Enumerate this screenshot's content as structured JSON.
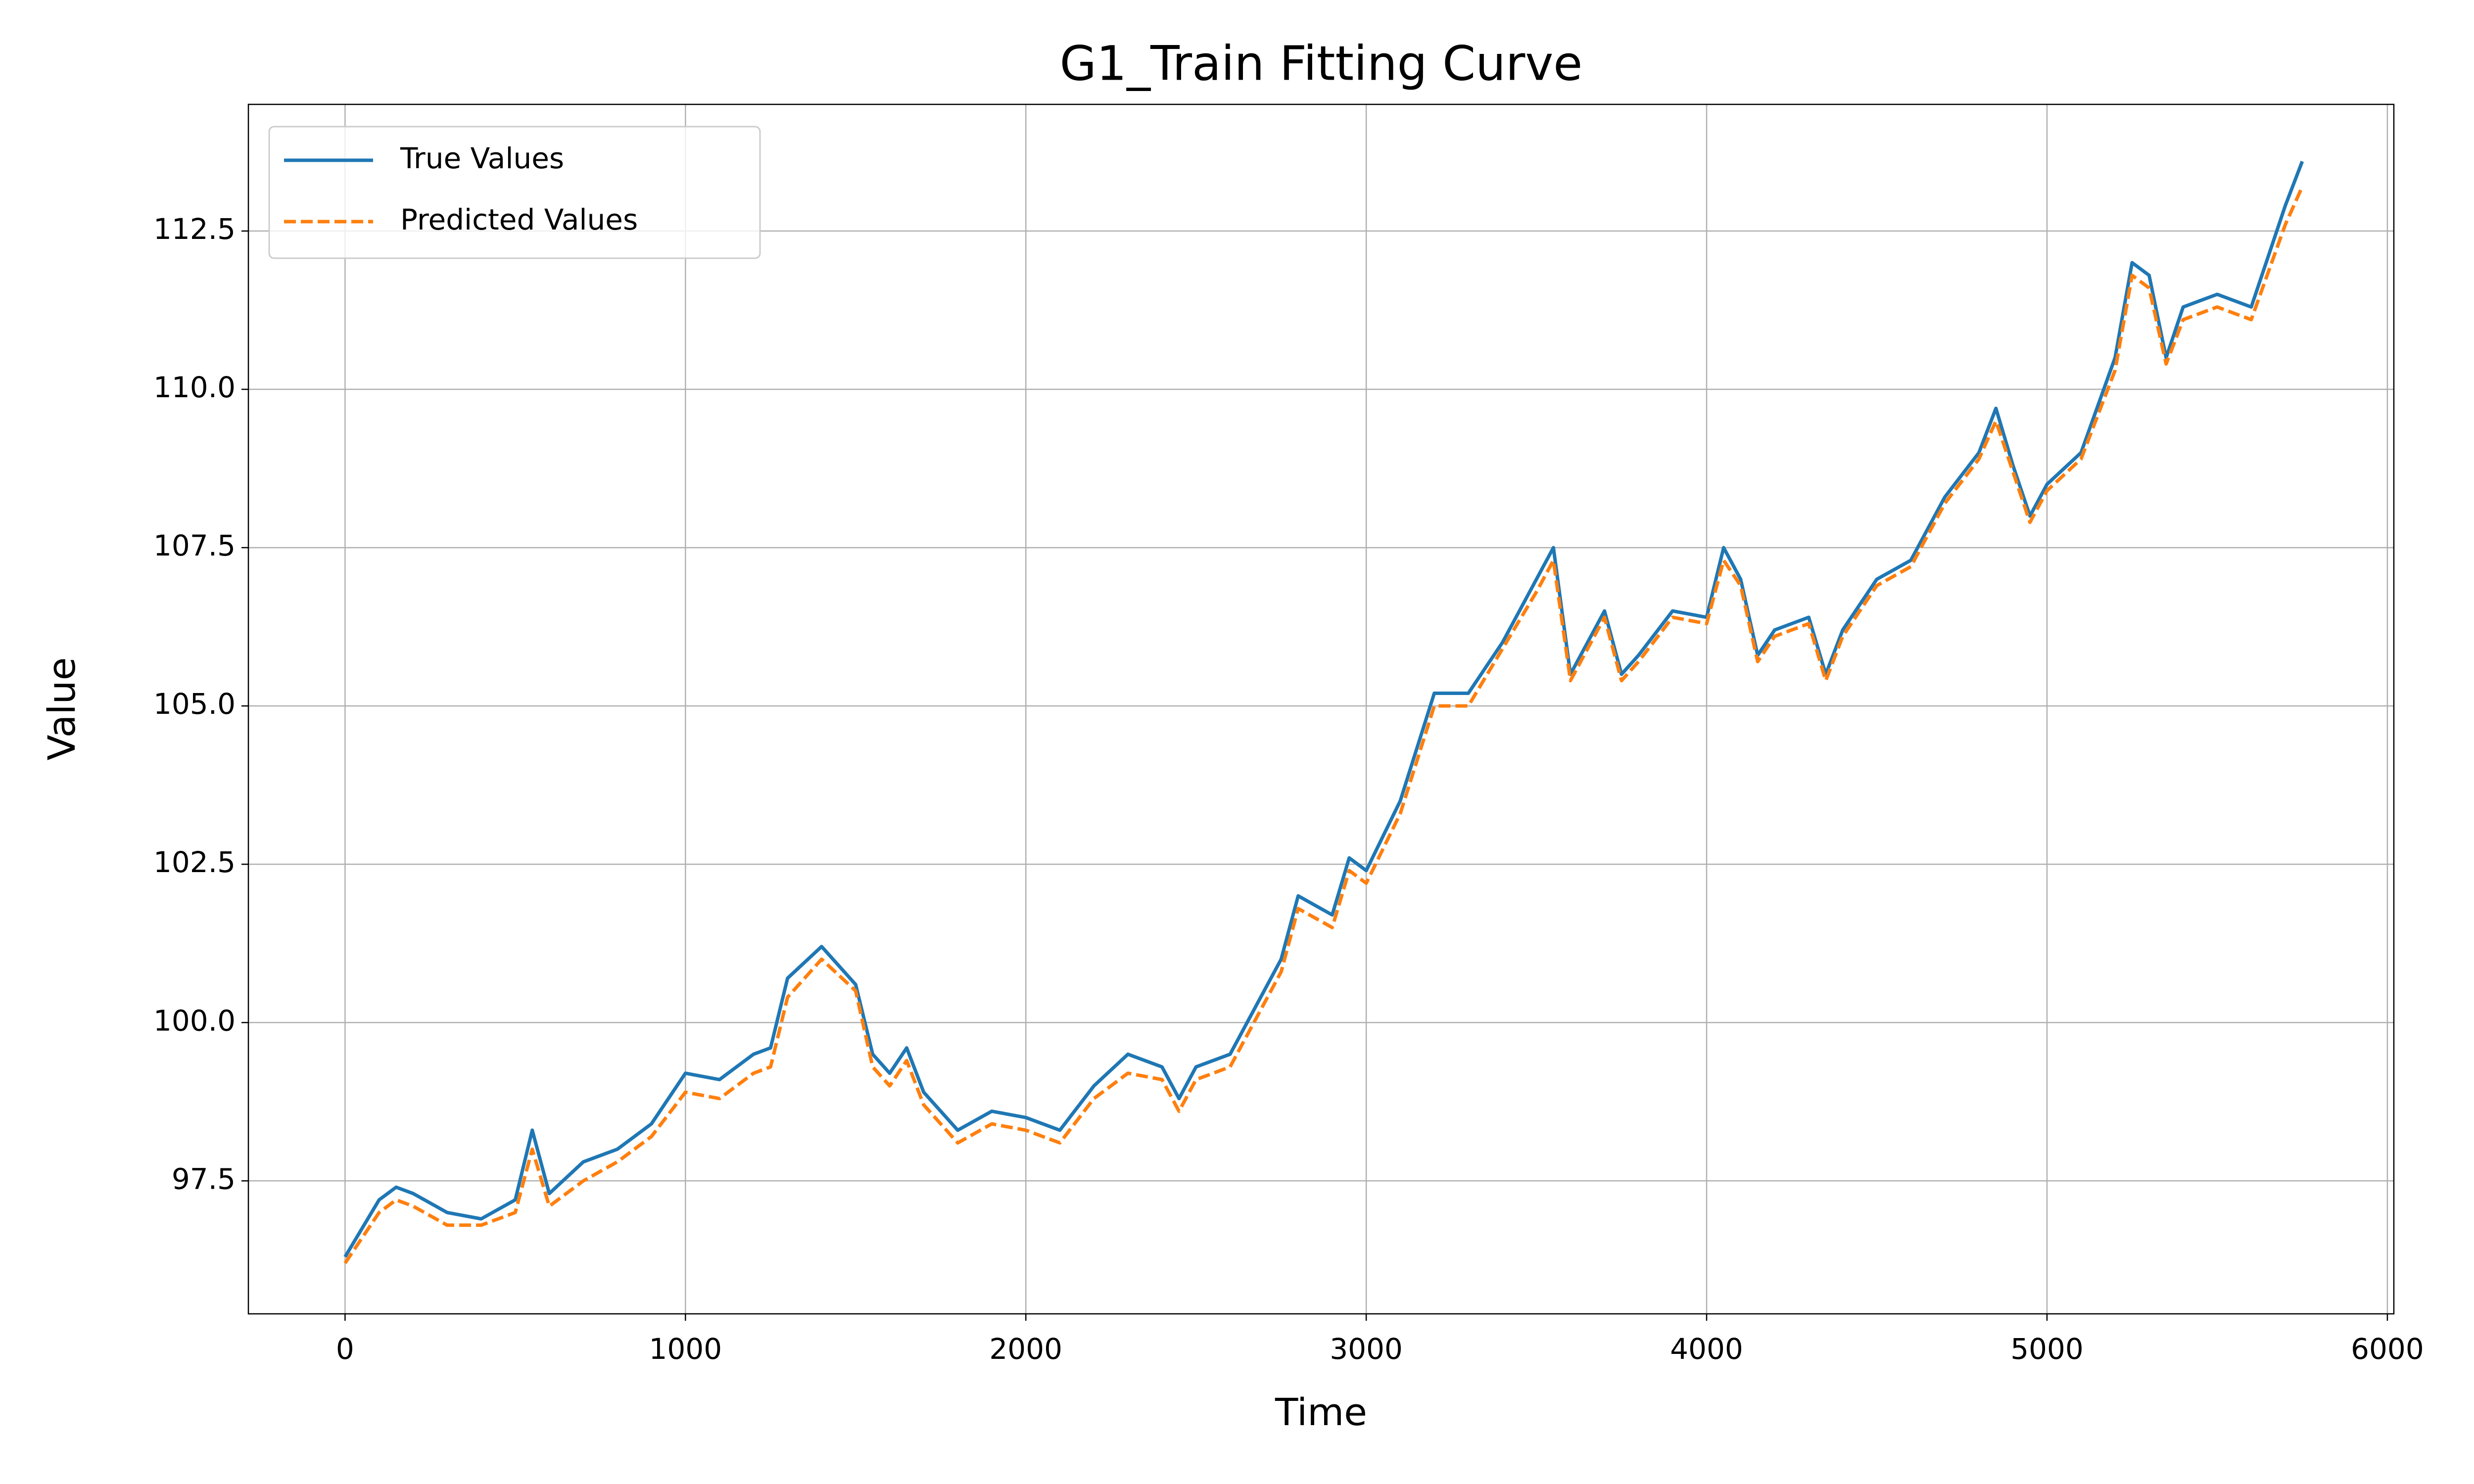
{
  "chart_data": {
    "type": "line",
    "title": "G1_Train Fitting Curve",
    "xlabel": "Time",
    "ylabel": "Value",
    "x": [
      0,
      100,
      150,
      200,
      300,
      400,
      500,
      550,
      600,
      700,
      800,
      900,
      1000,
      1100,
      1200,
      1250,
      1300,
      1400,
      1500,
      1550,
      1600,
      1650,
      1700,
      1800,
      1900,
      2000,
      2100,
      2200,
      2300,
      2400,
      2450,
      2500,
      2600,
      2700,
      2750,
      2800,
      2900,
      2950,
      3000,
      3100,
      3200,
      3300,
      3400,
      3500,
      3550,
      3600,
      3700,
      3750,
      3800,
      3900,
      4000,
      4050,
      4100,
      4150,
      4200,
      4300,
      4350,
      4400,
      4500,
      4600,
      4700,
      4800,
      4850,
      4900,
      4950,
      5000,
      5100,
      5200,
      5250,
      5300,
      5350,
      5400,
      5500,
      5600,
      5700,
      5750
    ],
    "series": [
      {
        "name": "True Values",
        "color": "#1f77b4",
        "dash": false,
        "values": [
          96.3,
          97.2,
          97.4,
          97.3,
          97.0,
          96.9,
          97.2,
          98.3,
          97.3,
          97.8,
          98.0,
          98.4,
          99.2,
          99.1,
          99.5,
          99.6,
          100.7,
          101.2,
          100.6,
          99.5,
          99.2,
          99.6,
          98.9,
          98.3,
          98.6,
          98.5,
          98.3,
          99.0,
          99.5,
          99.3,
          98.8,
          99.3,
          99.5,
          100.5,
          101.0,
          102.0,
          101.7,
          102.6,
          102.4,
          103.5,
          105.2,
          105.2,
          106.0,
          107.0,
          107.5,
          105.5,
          106.5,
          105.5,
          105.8,
          106.5,
          106.4,
          107.5,
          107.0,
          105.8,
          106.2,
          106.4,
          105.5,
          106.2,
          107.0,
          107.3,
          108.3,
          109.0,
          109.7,
          108.8,
          108.0,
          108.5,
          109.0,
          110.5,
          112.0,
          111.8,
          110.5,
          111.3,
          111.5,
          111.3,
          112.9,
          113.6
        ]
      },
      {
        "name": "Predicted Values",
        "color": "#ff7f0e",
        "dash": true,
        "values": [
          96.2,
          97.0,
          97.2,
          97.1,
          96.8,
          96.8,
          97.0,
          98.0,
          97.1,
          97.5,
          97.8,
          98.2,
          98.9,
          98.8,
          99.2,
          99.3,
          100.4,
          101.0,
          100.5,
          99.3,
          99.0,
          99.4,
          98.7,
          98.1,
          98.4,
          98.3,
          98.1,
          98.8,
          99.2,
          99.1,
          98.6,
          99.1,
          99.3,
          100.3,
          100.8,
          101.8,
          101.5,
          102.4,
          102.2,
          103.3,
          105.0,
          105.0,
          105.9,
          106.8,
          107.3,
          105.4,
          106.4,
          105.4,
          105.7,
          106.4,
          106.3,
          107.3,
          106.9,
          105.7,
          106.1,
          106.3,
          105.4,
          106.1,
          106.9,
          107.2,
          108.2,
          108.9,
          109.5,
          108.7,
          107.9,
          108.4,
          108.9,
          110.3,
          111.8,
          111.6,
          110.4,
          111.1,
          111.3,
          111.1,
          112.6,
          113.2
        ]
      }
    ],
    "xlim": [
      -284,
      6019
    ],
    "ylim": [
      95.4,
      114.5
    ],
    "xticks": [
      0,
      1000,
      2000,
      3000,
      4000,
      5000,
      6000
    ],
    "yticks": [
      97.5,
      {
        "value": 100,
        "label": "100.0"
      },
      102.5,
      {
        "value": 105,
        "label": "105.0"
      },
      107.5,
      {
        "value": 110,
        "label": "110.0"
      },
      112.5
    ],
    "grid": true,
    "legend": "upper left"
  }
}
